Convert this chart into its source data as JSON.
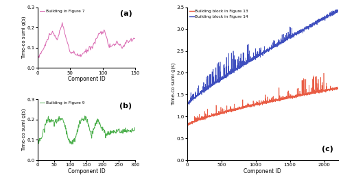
{
  "fig_a": {
    "label": "Building in Figure 7",
    "color": "#d966b0",
    "x_max": 150,
    "ylim": [
      0,
      0.3
    ],
    "yticks": [
      0,
      0.1,
      0.2,
      0.3
    ],
    "xlim": [
      0,
      150
    ],
    "xticks": [
      0,
      50,
      100,
      150
    ],
    "xlabel": "Component ID",
    "ylabel": "Time-co sumi g(s)",
    "panel_label": "(a)"
  },
  "fig_b": {
    "label": "Building in Figure 9",
    "color": "#4caf4c",
    "x_max": 300,
    "ylim": [
      0,
      0.3
    ],
    "yticks": [
      0,
      0.1,
      0.2,
      0.3
    ],
    "xlim": [
      0,
      300
    ],
    "xticks": [
      0,
      50,
      100,
      150,
      200,
      250,
      300
    ],
    "xlabel": "Component ID",
    "ylabel": "Time-co sumi g(s)",
    "panel_label": "(b)"
  },
  "fig_c": {
    "label13": "Building block in Figure 13",
    "label14": "Building block in Figure 14",
    "color13": "#e8533a",
    "color14": "#3344bb",
    "n_points": 2200,
    "x_max": 2200,
    "ylim": [
      0,
      3.5
    ],
    "yticks": [
      0,
      0.5,
      1.0,
      1.5,
      2.0,
      2.5,
      3.0,
      3.5
    ],
    "xlim": [
      0,
      2200
    ],
    "xticks": [
      0,
      500,
      1000,
      1500,
      2000
    ],
    "xlabel": "Component ID",
    "ylabel": "Time-co sumi g(s)",
    "panel_label": "(c)"
  },
  "noise_seed": 42
}
